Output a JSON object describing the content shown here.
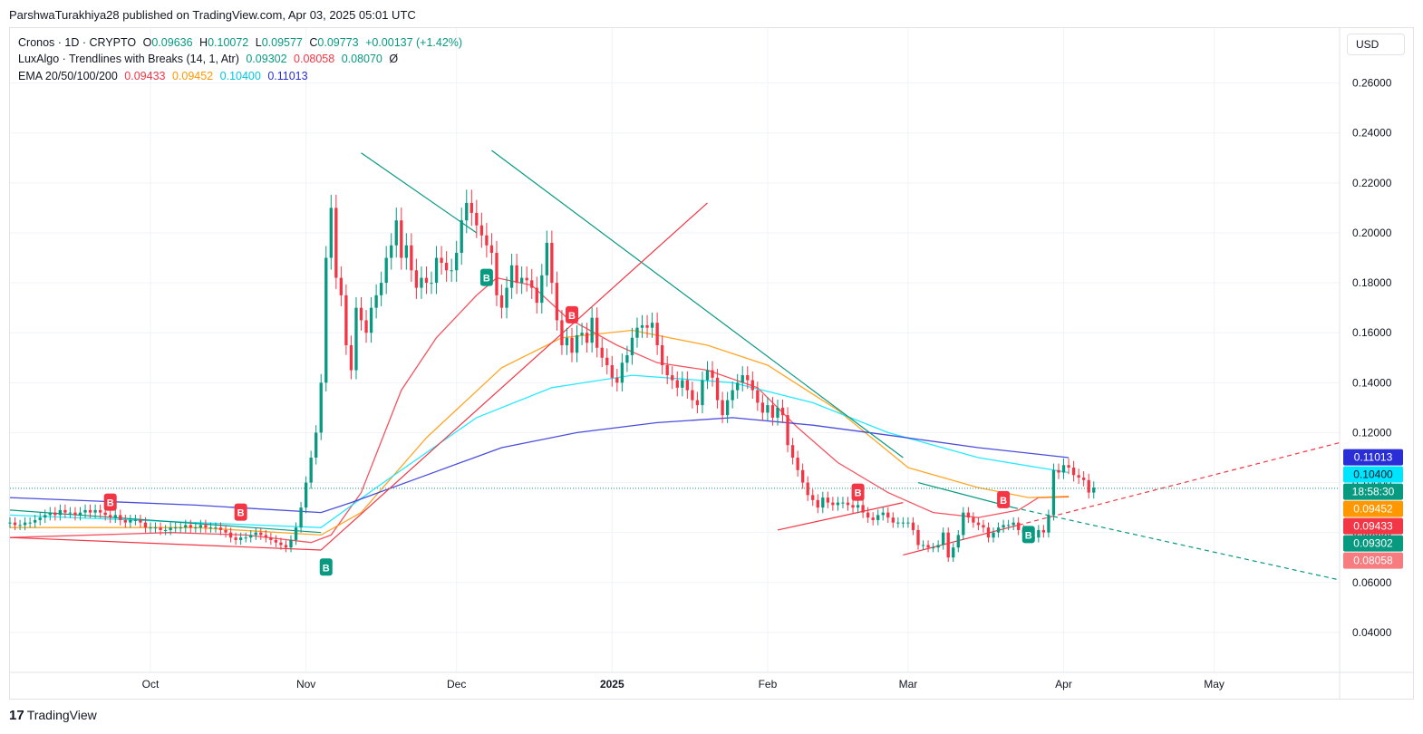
{
  "publisher_line": "ParshwaTurakhiya28 published on TradingView.com, Apr 03, 2025 05:01 UTC",
  "currency_button": "USD",
  "footer_logo": "TradingView",
  "colors": {
    "up": "#089981",
    "down": "#f23645",
    "ema20": "#f23645",
    "ema50": "#ff9800",
    "ema100": "#00e5ff",
    "ema200": "#2a2ed6",
    "trendline_green": "#089981",
    "trendline_red": "#f23645"
  },
  "legend": {
    "symbol": {
      "name": "Cronos · 1D · CRYPTO",
      "o_label": "O",
      "o": "0.09636",
      "h_label": "H",
      "h": "0.10072",
      "l_label": "L",
      "l": "0.09577",
      "c_label": "C",
      "c": "0.09773",
      "change": "+0.00137 (+1.42%)"
    },
    "luxalgo": {
      "name": "LuxAlgo · Trendlines with Breaks (14, 1, Atr)",
      "v1": "0.09302",
      "v2": "0.08058",
      "v3": "0.08070",
      "v4": "Ø"
    },
    "ema": {
      "name": "EMA 20/50/100/200",
      "v20": "0.09433",
      "v50": "0.09452",
      "v100": "0.10400",
      "v200": "0.11013"
    }
  },
  "chart_data": {
    "type": "candlestick",
    "title": "Cronos · 1D · CRYPTO",
    "y_axis": {
      "ylim": [
        0.024,
        0.282
      ],
      "ticks": [
        "0.04000",
        "0.06000",
        "0.08000",
        "0.10000",
        "0.12000",
        "0.14000",
        "0.16000",
        "0.18000",
        "0.20000",
        "0.22000",
        "0.24000",
        "0.26000"
      ]
    },
    "x_axis": {
      "xlim": [
        "2024-09-03",
        "2025-05-26"
      ],
      "ticks": [
        {
          "label": "Oct",
          "date": "2024-10-01",
          "bold": false
        },
        {
          "label": "Nov",
          "date": "2024-11-01",
          "bold": false
        },
        {
          "label": "Dec",
          "date": "2024-12-01",
          "bold": false
        },
        {
          "label": "2025",
          "date": "2025-01-01",
          "bold": true
        },
        {
          "label": "Feb",
          "date": "2025-02-01",
          "bold": false
        },
        {
          "label": "Mar",
          "date": "2025-03-01",
          "bold": false
        },
        {
          "label": "Apr",
          "date": "2025-04-01",
          "bold": false
        },
        {
          "label": "May",
          "date": "2025-05-01",
          "bold": false
        }
      ]
    },
    "grid": true,
    "first_candle": "2024-09-03",
    "closes": [
      0.084,
      0.083,
      0.083,
      0.084,
      0.084,
      0.085,
      0.086,
      0.087,
      0.088,
      0.087,
      0.089,
      0.088,
      0.088,
      0.087,
      0.088,
      0.089,
      0.088,
      0.089,
      0.088,
      0.087,
      0.086,
      0.087,
      0.085,
      0.084,
      0.085,
      0.085,
      0.084,
      0.082,
      0.082,
      0.082,
      0.081,
      0.081,
      0.082,
      0.082,
      0.082,
      0.083,
      0.082,
      0.082,
      0.083,
      0.082,
      0.082,
      0.082,
      0.081,
      0.08,
      0.078,
      0.077,
      0.078,
      0.078,
      0.079,
      0.08,
      0.079,
      0.078,
      0.077,
      0.076,
      0.075,
      0.074,
      0.077,
      0.082,
      0.09,
      0.1,
      0.11,
      0.12,
      0.14,
      0.19,
      0.21,
      0.182,
      0.175,
      0.155,
      0.145,
      0.17,
      0.165,
      0.16,
      0.17,
      0.175,
      0.18,
      0.19,
      0.195,
      0.205,
      0.19,
      0.195,
      0.185,
      0.178,
      0.182,
      0.18,
      0.18,
      0.19,
      0.188,
      0.185,
      0.185,
      0.192,
      0.205,
      0.212,
      0.208,
      0.203,
      0.199,
      0.195,
      0.192,
      0.175,
      0.17,
      0.178,
      0.187,
      0.18,
      0.182,
      0.181,
      0.178,
      0.172,
      0.183,
      0.196,
      0.18,
      0.165,
      0.155,
      0.158,
      0.152,
      0.159,
      0.16,
      0.156,
      0.166,
      0.154,
      0.15,
      0.147,
      0.142,
      0.14,
      0.148,
      0.151,
      0.158,
      0.162,
      0.163,
      0.162,
      0.164,
      0.155,
      0.147,
      0.143,
      0.141,
      0.138,
      0.141,
      0.137,
      0.133,
      0.131,
      0.141,
      0.145,
      0.142,
      0.133,
      0.127,
      0.133,
      0.137,
      0.14,
      0.143,
      0.141,
      0.137,
      0.132,
      0.128,
      0.131,
      0.126,
      0.13,
      0.127,
      0.115,
      0.11,
      0.105,
      0.1,
      0.095,
      0.093,
      0.09,
      0.094,
      0.092,
      0.091,
      0.092,
      0.092,
      0.091,
      0.09,
      0.091,
      0.088,
      0.086,
      0.085,
      0.087,
      0.088,
      0.086,
      0.084,
      0.084,
      0.084,
      0.084,
      0.081,
      0.075,
      0.075,
      0.074,
      0.074,
      0.075,
      0.08,
      0.07,
      0.074,
      0.079,
      0.088,
      0.086,
      0.084,
      0.083,
      0.082,
      0.078,
      0.08,
      0.082,
      0.083,
      0.083,
      0.084,
      0.081,
      0.08,
      0.078,
      0.078,
      0.081,
      0.08,
      0.087,
      0.105,
      0.104,
      0.107,
      0.106,
      0.103,
      0.102,
      0.101,
      0.096,
      0.098
    ],
    "candles_drawn_from_closes": "open = previous close",
    "ema": [
      {
        "name": "EMA 20",
        "color": "#f23645",
        "points": [
          [
            "2024-09-03",
            0.078
          ],
          [
            "2024-10-05",
            0.08
          ],
          [
            "2024-10-20",
            0.079
          ],
          [
            "2024-11-02",
            0.076
          ],
          [
            "2024-11-06",
            0.079
          ],
          [
            "2024-11-12",
            0.096
          ],
          [
            "2024-11-20",
            0.137
          ],
          [
            "2024-11-27",
            0.158
          ],
          [
            "2024-12-05",
            0.175
          ],
          [
            "2024-12-09",
            0.182
          ],
          [
            "2024-12-16",
            0.179
          ],
          [
            "2024-12-23",
            0.166
          ],
          [
            "2025-01-02",
            0.155
          ],
          [
            "2025-01-10",
            0.148
          ],
          [
            "2025-01-20",
            0.145
          ],
          [
            "2025-01-30",
            0.138
          ],
          [
            "2025-02-07",
            0.122
          ],
          [
            "2025-02-15",
            0.108
          ],
          [
            "2025-02-25",
            0.096
          ],
          [
            "2025-03-06",
            0.088
          ],
          [
            "2025-03-15",
            0.086
          ],
          [
            "2025-03-23",
            0.089
          ],
          [
            "2025-03-27",
            0.094
          ],
          [
            "2025-04-02",
            0.0943
          ]
        ]
      },
      {
        "name": "EMA 50",
        "color": "#ff9800",
        "points": [
          [
            "2024-09-03",
            0.082
          ],
          [
            "2024-10-10",
            0.082
          ],
          [
            "2024-11-04",
            0.079
          ],
          [
            "2024-11-12",
            0.088
          ],
          [
            "2024-11-25",
            0.118
          ],
          [
            "2024-12-10",
            0.146
          ],
          [
            "2024-12-22",
            0.158
          ],
          [
            "2025-01-05",
            0.161
          ],
          [
            "2025-01-20",
            0.155
          ],
          [
            "2025-02-01",
            0.147
          ],
          [
            "2025-02-15",
            0.129
          ],
          [
            "2025-03-01",
            0.106
          ],
          [
            "2025-03-15",
            0.098
          ],
          [
            "2025-03-25",
            0.094
          ],
          [
            "2025-04-02",
            0.0945
          ]
        ]
      },
      {
        "name": "EMA 100",
        "color": "#00e5ff",
        "points": [
          [
            "2024-09-03",
            0.087
          ],
          [
            "2024-10-10",
            0.084
          ],
          [
            "2024-11-04",
            0.082
          ],
          [
            "2024-11-15",
            0.098
          ],
          [
            "2024-12-05",
            0.126
          ],
          [
            "2024-12-20",
            0.138
          ],
          [
            "2025-01-05",
            0.143
          ],
          [
            "2025-01-25",
            0.14
          ],
          [
            "2025-02-10",
            0.132
          ],
          [
            "2025-02-25",
            0.12
          ],
          [
            "2025-03-15",
            0.11
          ],
          [
            "2025-04-02",
            0.104
          ]
        ]
      },
      {
        "name": "EMA 200",
        "color": "#2a2ed6",
        "points": [
          [
            "2024-09-03",
            0.094
          ],
          [
            "2024-10-10",
            0.091
          ],
          [
            "2024-11-04",
            0.088
          ],
          [
            "2024-11-10",
            0.092
          ],
          [
            "2024-11-25",
            0.103
          ],
          [
            "2024-12-10",
            0.114
          ],
          [
            "2024-12-25",
            0.12
          ],
          [
            "2025-01-10",
            0.124
          ],
          [
            "2025-01-25",
            0.126
          ],
          [
            "2025-02-10",
            0.123
          ],
          [
            "2025-02-25",
            0.119
          ],
          [
            "2025-03-15",
            0.114
          ],
          [
            "2025-04-02",
            0.11
          ]
        ]
      }
    ],
    "trendlines": [
      {
        "color": "#089981",
        "style": "solid",
        "points": [
          [
            "2024-09-03",
            0.089
          ],
          [
            "2024-11-04",
            0.08
          ]
        ]
      },
      {
        "color": "#f23645",
        "style": "solid",
        "points": [
          [
            "2024-09-03",
            0.078
          ],
          [
            "2024-11-04",
            0.073
          ]
        ]
      },
      {
        "color": "#089981",
        "style": "solid",
        "points": [
          [
            "2024-11-12",
            0.232
          ],
          [
            "2024-12-05",
            0.2
          ]
        ]
      },
      {
        "color": "#089981",
        "style": "solid",
        "points": [
          [
            "2024-12-08",
            0.233
          ],
          [
            "2025-02-28",
            0.11
          ]
        ]
      },
      {
        "color": "#f23645",
        "style": "solid",
        "points": [
          [
            "2024-11-04",
            0.073
          ],
          [
            "2025-01-20",
            0.212
          ]
        ]
      },
      {
        "color": "#f23645",
        "style": "solid",
        "points": [
          [
            "2025-02-03",
            0.081
          ],
          [
            "2025-02-28",
            0.092
          ]
        ]
      },
      {
        "color": "#089981",
        "style": "solid",
        "points": [
          [
            "2025-03-03",
            0.1
          ],
          [
            "2025-03-22",
            0.09
          ]
        ]
      },
      {
        "color": "#f23645",
        "style": "solid",
        "points": [
          [
            "2025-02-28",
            0.071
          ],
          [
            "2025-03-23",
            0.083
          ]
        ]
      },
      {
        "color": "#089981",
        "style": "dashed",
        "points": [
          [
            "2025-03-22",
            0.09
          ],
          [
            "2025-05-26",
            0.061
          ]
        ]
      },
      {
        "color": "#f23645",
        "style": "dashed",
        "points": [
          [
            "2025-03-23",
            0.083
          ],
          [
            "2025-05-26",
            0.116
          ]
        ]
      }
    ],
    "signals": [
      {
        "label": "B",
        "type": "sell",
        "date": "2024-09-23",
        "price": 0.092
      },
      {
        "label": "B",
        "type": "sell",
        "date": "2024-10-19",
        "price": 0.088
      },
      {
        "label": "B",
        "type": "buy",
        "date": "2024-11-05",
        "price": 0.066
      },
      {
        "label": "B",
        "type": "buy",
        "date": "2024-12-07",
        "price": 0.182
      },
      {
        "label": "B",
        "type": "sell",
        "date": "2024-12-24",
        "price": 0.167
      },
      {
        "label": "B",
        "type": "sell",
        "date": "2025-02-19",
        "price": 0.096
      },
      {
        "label": "B",
        "type": "sell",
        "date": "2025-03-20",
        "price": 0.093
      },
      {
        "label": "B",
        "type": "buy",
        "date": "2025-03-25",
        "price": 0.079
      }
    ],
    "current_price_line": 0.0977,
    "price_labels": [
      {
        "value": "0.11013",
        "price": 0.11013,
        "bg": "#2a2ed6",
        "fg": "#ffffff"
      },
      {
        "value": "0.10400",
        "price": 0.104,
        "bg": "#00e5ff",
        "fg": "#131722"
      },
      {
        "value": "18:58:30",
        "price": 0.09773,
        "bg": "#089981",
        "fg": "#ffffff",
        "countdown": true
      },
      {
        "value": "0.09452",
        "price": 0.09452,
        "bg": "#ff9800",
        "fg": "#ffffff"
      },
      {
        "value": "0.09433",
        "price": 0.09433,
        "bg": "#f23645",
        "fg": "#ffffff"
      },
      {
        "value": "0.09302",
        "price": 0.09302,
        "bg": "#089981",
        "fg": "#ffffff"
      },
      {
        "value": "0.08058",
        "price": 0.08058,
        "bg": "#f77c80",
        "fg": "#ffffff"
      }
    ]
  }
}
